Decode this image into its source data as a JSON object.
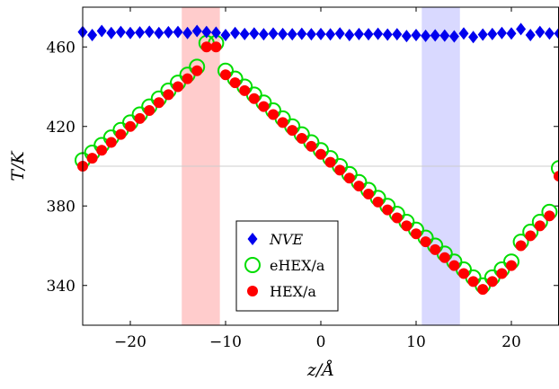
{
  "chart_data": {
    "type": "scatter",
    "xlabel": "z/Å",
    "ylabel": "T/K",
    "xlim": [
      -25,
      25
    ],
    "ylim": [
      320,
      480
    ],
    "x_ticks": [
      -20,
      -10,
      0,
      10,
      20
    ],
    "y_ticks": [
      340,
      380,
      420,
      460
    ],
    "reference_line_y": 400,
    "shaded_regions": [
      {
        "x0": -14.6,
        "x1": -10.6,
        "color": "#ffcccc"
      },
      {
        "x0": 10.6,
        "x1": 14.6,
        "color": "#d9d9ff"
      }
    ],
    "legend_position": "center-bottom",
    "series": [
      {
        "name": "NVE",
        "marker": "diamond",
        "color": "#0000ee",
        "x": [
          -25.0,
          -24.0,
          -23.0,
          -22.0,
          -21.0,
          -20.0,
          -19.0,
          -18.0,
          -17.0,
          -16.0,
          -15.0,
          -14.0,
          -13.0,
          -12.0,
          -11.0,
          -10.0,
          -9.0,
          -8.0,
          -7.0,
          -6.0,
          -5.0,
          -4.0,
          -3.0,
          -2.0,
          -1.0,
          0.0,
          1.0,
          2.0,
          3.0,
          4.0,
          5.0,
          6.0,
          7.0,
          8.0,
          9.0,
          10.0,
          11.0,
          12.0,
          13.0,
          14.0,
          15.0,
          16.0,
          17.0,
          18.0,
          19.0,
          20.0,
          21.0,
          22.0,
          23.0,
          24.0,
          25.0
        ],
        "y": [
          467.5,
          466.0,
          468.0,
          467.0,
          467.5,
          467.0,
          467.3,
          467.6,
          467.0,
          467.4,
          467.5,
          467.0,
          468.0,
          467.5,
          467.2,
          466.0,
          467.0,
          466.5,
          466.8,
          466.4,
          466.7,
          466.5,
          466.4,
          466.6,
          466.4,
          466.5,
          466.3,
          466.8,
          466.0,
          466.5,
          466.4,
          466.6,
          466.2,
          466.4,
          465.5,
          466.0,
          465.6,
          465.8,
          465.7,
          465.3,
          466.8,
          465.0,
          466.2,
          466.5,
          467.0,
          466.8,
          469.0,
          466.0,
          467.5,
          466.8,
          466.8
        ]
      },
      {
        "name": "eHEX/a",
        "marker": "open-circle",
        "color": "#00dd00",
        "x": [
          -25.0,
          -24.0,
          -23.0,
          -22.0,
          -21.0,
          -20.0,
          -19.0,
          -18.0,
          -17.0,
          -16.0,
          -15.0,
          -14.0,
          -13.0,
          -12.0,
          -11.0,
          -10.0,
          -9.0,
          -8.0,
          -7.0,
          -6.0,
          -5.0,
          -4.0,
          -3.0,
          -2.0,
          -1.0,
          0.0,
          1.0,
          2.0,
          3.0,
          4.0,
          5.0,
          6.0,
          7.0,
          8.0,
          9.0,
          10.0,
          11.0,
          12.0,
          13.0,
          14.0,
          15.0,
          16.0,
          17.0,
          18.0,
          19.0,
          20.0,
          21.0,
          22.0,
          23.0,
          24.0,
          25.0
        ],
        "y": [
          403.0,
          406.8,
          410.6,
          414.4,
          418.2,
          422.0,
          426.0,
          430.0,
          434.0,
          438.0,
          442.0,
          446.0,
          450.0,
          462.0,
          462.0,
          448.0,
          444.0,
          440.0,
          436.0,
          432.0,
          428.0,
          424.0,
          420.0,
          416.0,
          412.0,
          408.0,
          404.0,
          400.0,
          396.0,
          392.0,
          388.0,
          384.0,
          380.0,
          376.0,
          372.0,
          368.0,
          364.0,
          360.0,
          356.0,
          352.0,
          348.0,
          344.0,
          340.0,
          344.0,
          348.0,
          352.0,
          362.0,
          367.0,
          372.0,
          377.0,
          399.0
        ]
      },
      {
        "name": "HEX/a",
        "marker": "filled-circle",
        "color": "#ff0000",
        "x": [
          -25.0,
          -24.0,
          -23.0,
          -22.0,
          -21.0,
          -20.0,
          -19.0,
          -18.0,
          -17.0,
          -16.0,
          -15.0,
          -14.0,
          -13.0,
          -12.0,
          -11.0,
          -10.0,
          -9.0,
          -8.0,
          -7.0,
          -6.0,
          -5.0,
          -4.0,
          -3.0,
          -2.0,
          -1.0,
          0.0,
          1.0,
          2.0,
          3.0,
          4.0,
          5.0,
          6.0,
          7.0,
          8.0,
          9.0,
          10.0,
          11.0,
          12.0,
          13.0,
          14.0,
          15.0,
          16.0,
          17.0,
          18.0,
          19.0,
          20.0,
          21.0,
          22.0,
          23.0,
          24.0,
          25.0
        ],
        "y": [
          400.0,
          404.0,
          408.0,
          412.0,
          416.0,
          420.0,
          424.0,
          428.0,
          432.0,
          436.0,
          440.0,
          444.0,
          448.0,
          460.0,
          460.0,
          446.0,
          442.0,
          438.0,
          434.0,
          430.0,
          426.0,
          422.0,
          418.0,
          414.0,
          410.0,
          406.0,
          402.0,
          398.0,
          394.0,
          390.0,
          386.0,
          382.0,
          378.0,
          374.0,
          370.0,
          366.0,
          362.0,
          358.0,
          354.0,
          350.0,
          346.0,
          342.0,
          338.0,
          342.0,
          346.0,
          350.0,
          360.0,
          365.0,
          370.0,
          375.0,
          395.0
        ]
      }
    ]
  }
}
